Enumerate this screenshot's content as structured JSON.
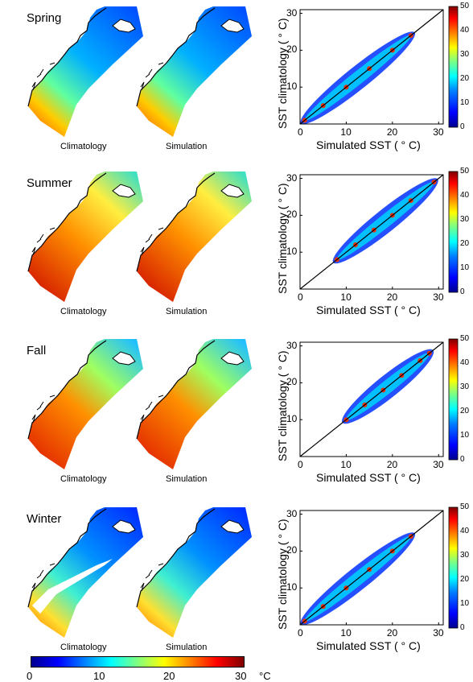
{
  "colors": {
    "land": "#ffffff",
    "coast": "#000000"
  },
  "panels": [
    {
      "season": "Spring",
      "clim_label": "Climatology",
      "sim_label": "Simulation"
    },
    {
      "season": "Summer",
      "clim_label": "Climatology",
      "sim_label": "Simulation"
    },
    {
      "season": "Fall",
      "clim_label": "Climatology",
      "sim_label": "Simulation"
    },
    {
      "season": "Winter",
      "clim_label": "Climatology",
      "sim_label": "Simulation"
    }
  ],
  "bottom_colorbar": {
    "ticks": [
      "0",
      "10",
      "20",
      "30"
    ],
    "unit": "°C",
    "range": [
      0,
      30
    ]
  },
  "chart_data": [
    {
      "type": "scatter",
      "subplot": "Spring",
      "xlabel": "Simulated SST ( ° C)",
      "ylabel": "SST climatology ( ° C)",
      "xlim": [
        0,
        31
      ],
      "ylim": [
        0,
        31
      ],
      "xticks": [
        "0",
        "10",
        "20",
        "30"
      ],
      "yticks": [
        "10",
        "20",
        "30"
      ],
      "colorbar": {
        "range": [
          0,
          50
        ],
        "ticks": [
          "0",
          "10",
          "20",
          "30",
          "40",
          "50"
        ]
      },
      "one_to_one_line": true,
      "density_ridge": {
        "x": [
          1,
          5,
          10,
          15,
          20,
          24
        ],
        "y": [
          1,
          5,
          10,
          15,
          20,
          24
        ]
      }
    },
    {
      "type": "scatter",
      "subplot": "Summer",
      "xlabel": "Simulated SST ( ° C)",
      "ylabel": "SST climatology ( ° C)",
      "xlim": [
        0,
        31
      ],
      "ylim": [
        0,
        31
      ],
      "xticks": [
        "0",
        "10",
        "20",
        "30"
      ],
      "yticks": [
        "10",
        "20",
        "30"
      ],
      "colorbar": {
        "range": [
          0,
          50
        ],
        "ticks": [
          "0",
          "10",
          "20",
          "30",
          "40",
          "50"
        ]
      },
      "one_to_one_line": true,
      "density_ridge": {
        "x": [
          8,
          12,
          16,
          20,
          24,
          29
        ],
        "y": [
          8,
          12,
          16,
          20,
          24,
          29
        ]
      }
    },
    {
      "type": "scatter",
      "subplot": "Fall",
      "xlabel": "Simulated SST ( ° C)",
      "ylabel": "SST climatology ( ° C)",
      "xlim": [
        0,
        31
      ],
      "ylim": [
        0,
        31
      ],
      "xticks": [
        "0",
        "10",
        "20",
        "30"
      ],
      "yticks": [
        "10",
        "20",
        "30"
      ],
      "colorbar": {
        "range": [
          0,
          50
        ],
        "ticks": [
          "0",
          "10",
          "20",
          "30",
          "40",
          "50"
        ]
      },
      "one_to_one_line": true,
      "density_ridge": {
        "x": [
          10,
          14,
          18,
          22,
          26,
          28
        ],
        "y": [
          10,
          14,
          18,
          22,
          26,
          28
        ]
      }
    },
    {
      "type": "scatter",
      "subplot": "Winter",
      "xlabel": "Simulated SST ( ° C)",
      "ylabel": "SST climatology ( ° C)",
      "xlim": [
        0,
        31
      ],
      "ylim": [
        0,
        31
      ],
      "xticks": [
        "0",
        "10",
        "20",
        "30"
      ],
      "yticks": [
        "10",
        "20",
        "30"
      ],
      "colorbar": {
        "range": [
          0,
          50
        ],
        "ticks": [
          "0",
          "10",
          "20",
          "30",
          "40",
          "50"
        ]
      },
      "one_to_one_line": true,
      "density_ridge": {
        "x": [
          1,
          5,
          10,
          15,
          20,
          24
        ],
        "y": [
          1,
          5,
          10,
          15,
          20,
          24
        ]
      }
    }
  ]
}
